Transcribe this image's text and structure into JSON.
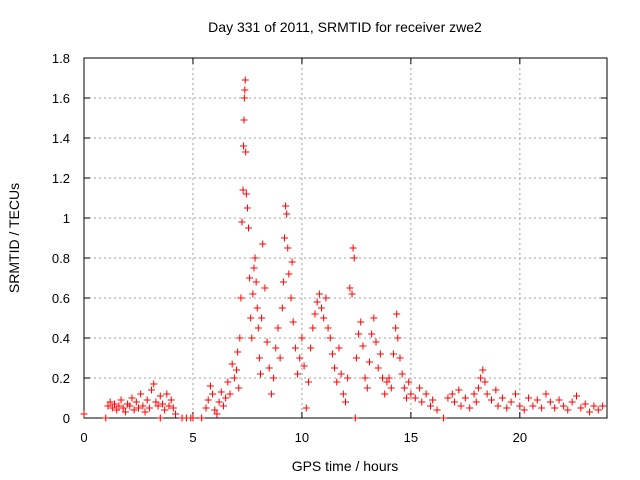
{
  "chart_data": {
    "type": "scatter",
    "title": "Day 331 of 2011, SRMTID for receiver zwe2",
    "xlabel": "GPS time / hours",
    "ylabel": "SRMTID / TECUs",
    "xlim": [
      0,
      24
    ],
    "ylim": [
      0,
      1.8
    ],
    "xticks": [
      0,
      5,
      10,
      15,
      20
    ],
    "xtick_labels": [
      "0",
      "5",
      "10",
      "15",
      "20"
    ],
    "yticks": [
      0,
      0.2,
      0.4,
      0.6,
      0.8,
      1,
      1.2,
      1.4,
      1.6,
      1.8
    ],
    "ytick_labels": [
      "0",
      "0.2",
      "0.4",
      "0.6",
      "0.8",
      "1",
      "1.2",
      "1.4",
      "1.6",
      "1.8"
    ],
    "grid": true,
    "marker": "+",
    "color": "#ff0000",
    "series": [
      {
        "name": "SRMTID",
        "points": [
          [
            0.0,
            0.02
          ],
          [
            1.0,
            0.0
          ],
          [
            1.1,
            0.06
          ],
          [
            1.2,
            0.08
          ],
          [
            1.3,
            0.05
          ],
          [
            1.4,
            0.07
          ],
          [
            1.5,
            0.04
          ],
          [
            1.6,
            0.06
          ],
          [
            1.7,
            0.09
          ],
          [
            1.8,
            0.05
          ],
          [
            1.9,
            0.03
          ],
          [
            2.0,
            0.07
          ],
          [
            2.1,
            0.06
          ],
          [
            2.2,
            0.1
          ],
          [
            2.3,
            0.04
          ],
          [
            2.4,
            0.08
          ],
          [
            2.5,
            0.05
          ],
          [
            2.6,
            0.12
          ],
          [
            2.7,
            0.06
          ],
          [
            2.8,
            0.03
          ],
          [
            2.9,
            0.09
          ],
          [
            3.0,
            0.05
          ],
          [
            3.1,
            0.14
          ],
          [
            3.2,
            0.17
          ],
          [
            3.3,
            0.08
          ],
          [
            3.4,
            0.06
          ],
          [
            3.5,
            0.11
          ],
          [
            3.6,
            0.07
          ],
          [
            3.7,
            0.04
          ],
          [
            3.8,
            0.12
          ],
          [
            3.9,
            0.06
          ],
          [
            4.0,
            0.09
          ],
          [
            4.1,
            0.05
          ],
          [
            4.2,
            0.02
          ],
          [
            3.5,
            0.0
          ],
          [
            4.5,
            0.0
          ],
          [
            4.7,
            0.0
          ],
          [
            4.9,
            0.0
          ],
          [
            5.0,
            0.0
          ],
          [
            5.4,
            0.0
          ],
          [
            5.6,
            0.05
          ],
          [
            5.7,
            0.09
          ],
          [
            5.8,
            0.16
          ],
          [
            5.9,
            0.12
          ],
          [
            6.0,
            0.04
          ],
          [
            6.1,
            0.02
          ],
          [
            6.2,
            0.08
          ],
          [
            6.3,
            0.13
          ],
          [
            6.4,
            0.06
          ],
          [
            6.5,
            0.1
          ],
          [
            6.6,
            0.18
          ],
          [
            6.7,
            0.12
          ],
          [
            6.8,
            0.27
          ],
          [
            6.9,
            0.2
          ],
          [
            7.0,
            0.24
          ],
          [
            7.05,
            0.33
          ],
          [
            7.1,
            0.15
          ],
          [
            7.15,
            0.4
          ],
          [
            7.2,
            0.6
          ],
          [
            7.25,
            0.98
          ],
          [
            7.3,
            1.14
          ],
          [
            7.32,
            1.36
          ],
          [
            7.34,
            1.49
          ],
          [
            7.36,
            1.6
          ],
          [
            7.38,
            1.64
          ],
          [
            7.4,
            1.69
          ],
          [
            7.42,
            1.33
          ],
          [
            7.45,
            1.12
          ],
          [
            7.5,
            1.05
          ],
          [
            7.55,
            0.95
          ],
          [
            7.6,
            0.7
          ],
          [
            7.65,
            0.5
          ],
          [
            7.7,
            0.4
          ],
          [
            7.75,
            0.62
          ],
          [
            7.8,
            0.75
          ],
          [
            7.85,
            0.8
          ],
          [
            7.9,
            0.68
          ],
          [
            7.95,
            0.55
          ],
          [
            8.0,
            0.45
          ],
          [
            8.05,
            0.3
          ],
          [
            8.1,
            0.22
          ],
          [
            8.15,
            0.5
          ],
          [
            8.2,
            0.87
          ],
          [
            8.3,
            0.65
          ],
          [
            8.4,
            0.38
          ],
          [
            8.5,
            0.25
          ],
          [
            8.6,
            0.12
          ],
          [
            8.7,
            0.2
          ],
          [
            8.8,
            0.35
          ],
          [
            8.9,
            0.45
          ],
          [
            9.0,
            0.3
          ],
          [
            9.1,
            0.55
          ],
          [
            9.15,
            0.68
          ],
          [
            9.2,
            0.9
          ],
          [
            9.25,
            1.06
          ],
          [
            9.3,
            1.02
          ],
          [
            9.35,
            0.85
          ],
          [
            9.4,
            0.72
          ],
          [
            9.5,
            0.6
          ],
          [
            9.55,
            0.78
          ],
          [
            9.6,
            0.48
          ],
          [
            9.7,
            0.35
          ],
          [
            9.8,
            0.22
          ],
          [
            9.9,
            0.3
          ],
          [
            10.0,
            0.4
          ],
          [
            10.1,
            0.26
          ],
          [
            10.2,
            0.05
          ],
          [
            10.3,
            0.18
          ],
          [
            10.4,
            0.35
          ],
          [
            10.5,
            0.45
          ],
          [
            10.6,
            0.52
          ],
          [
            10.7,
            0.58
          ],
          [
            10.8,
            0.62
          ],
          [
            10.9,
            0.55
          ],
          [
            11.0,
            0.5
          ],
          [
            11.1,
            0.6
          ],
          [
            11.2,
            0.45
          ],
          [
            11.3,
            0.4
          ],
          [
            11.4,
            0.32
          ],
          [
            11.5,
            0.25
          ],
          [
            11.6,
            0.18
          ],
          [
            11.7,
            0.35
          ],
          [
            11.8,
            0.22
          ],
          [
            11.9,
            0.12
          ],
          [
            12.0,
            0.08
          ],
          [
            12.1,
            0.2
          ],
          [
            12.2,
            0.65
          ],
          [
            12.3,
            0.62
          ],
          [
            12.35,
            0.85
          ],
          [
            12.4,
            0.8
          ],
          [
            12.45,
            0.0
          ],
          [
            12.5,
            0.3
          ],
          [
            12.6,
            0.42
          ],
          [
            12.7,
            0.48
          ],
          [
            12.8,
            0.36
          ],
          [
            12.9,
            0.2
          ],
          [
            13.0,
            0.15
          ],
          [
            13.1,
            0.28
          ],
          [
            13.2,
            0.42
          ],
          [
            13.3,
            0.5
          ],
          [
            13.4,
            0.38
          ],
          [
            13.5,
            0.25
          ],
          [
            13.6,
            0.32
          ],
          [
            13.7,
            0.2
          ],
          [
            13.8,
            0.12
          ],
          [
            13.9,
            0.18
          ],
          [
            14.0,
            0.2
          ],
          [
            14.1,
            0.15
          ],
          [
            14.2,
            0.32
          ],
          [
            14.3,
            0.45
          ],
          [
            14.35,
            0.52
          ],
          [
            14.4,
            0.4
          ],
          [
            14.5,
            0.3
          ],
          [
            14.6,
            0.22
          ],
          [
            14.7,
            0.15
          ],
          [
            14.8,
            0.1
          ],
          [
            14.9,
            0.18
          ],
          [
            15.0,
            0.12
          ],
          [
            15.2,
            0.1
          ],
          [
            15.4,
            0.15
          ],
          [
            15.5,
            0.08
          ],
          [
            15.7,
            0.12
          ],
          [
            15.9,
            0.06
          ],
          [
            16.0,
            0.09
          ],
          [
            16.2,
            0.04
          ],
          [
            16.5,
            0.0
          ],
          [
            16.7,
            0.1
          ],
          [
            16.9,
            0.12
          ],
          [
            17.0,
            0.08
          ],
          [
            17.2,
            0.14
          ],
          [
            17.3,
            0.06
          ],
          [
            17.5,
            0.1
          ],
          [
            17.7,
            0.05
          ],
          [
            17.9,
            0.12
          ],
          [
            18.0,
            0.08
          ],
          [
            18.1,
            0.15
          ],
          [
            18.2,
            0.2
          ],
          [
            18.3,
            0.24
          ],
          [
            18.4,
            0.18
          ],
          [
            18.5,
            0.12
          ],
          [
            18.7,
            0.09
          ],
          [
            18.9,
            0.14
          ],
          [
            19.0,
            0.06
          ],
          [
            19.2,
            0.1
          ],
          [
            19.4,
            0.05
          ],
          [
            19.6,
            0.08
          ],
          [
            19.8,
            0.12
          ],
          [
            20.0,
            0.06
          ],
          [
            20.2,
            0.04
          ],
          [
            20.4,
            0.1
          ],
          [
            20.6,
            0.06
          ],
          [
            20.8,
            0.09
          ],
          [
            21.0,
            0.05
          ],
          [
            21.2,
            0.12
          ],
          [
            21.4,
            0.08
          ],
          [
            21.6,
            0.05
          ],
          [
            21.8,
            0.09
          ],
          [
            22.0,
            0.06
          ],
          [
            22.2,
            0.04
          ],
          [
            22.4,
            0.08
          ],
          [
            22.6,
            0.11
          ],
          [
            22.8,
            0.05
          ],
          [
            23.0,
            0.07
          ],
          [
            23.2,
            0.03
          ],
          [
            23.4,
            0.06
          ],
          [
            23.6,
            0.04
          ],
          [
            23.8,
            0.06
          ]
        ]
      }
    ]
  }
}
